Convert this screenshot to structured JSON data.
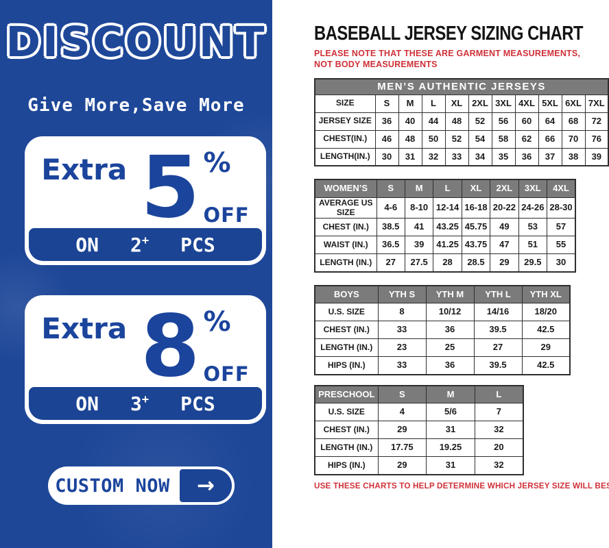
{
  "colors": {
    "panel_blue": "#1e4798",
    "deep_blue": "#1b4495",
    "header_gray": "#7b7b7b",
    "note_red": "#cf3038",
    "border_dark": "#2e2e2e"
  },
  "left": {
    "discount_title": "DISCOUNT",
    "tagline": "Give More,Save More",
    "offers": [
      {
        "prefix": "Extra",
        "percent": "5",
        "percent_sign": "%",
        "off_label": "OFF",
        "on_label": "ON",
        "qty": "2",
        "plus": "+",
        "pcs_label": "PCS"
      },
      {
        "prefix": "Extra",
        "percent": "8",
        "percent_sign": "%",
        "off_label": "OFF",
        "on_label": "ON",
        "qty": "3",
        "plus": "+",
        "pcs_label": "PCS"
      }
    ],
    "custom_button": {
      "label": "CUSTOM NOW",
      "arrow": "→"
    }
  },
  "right": {
    "title": "BASEBALL JERSEY SIZING CHART",
    "note_top": "PLEASE NOTE THAT THESE ARE GARMENT MEASUREMENTS, NOT BODY MEASUREMENTS",
    "note_bottom": "USE THESE CHARTS TO HELP DETERMINE WHICH JERSEY SIZE WILL BEST FIT YOU.",
    "tables": [
      {
        "name": "mens",
        "banner": "MEN’S AUTHENTIC JERSEYS",
        "gray_header": false,
        "rows": [
          [
            "SIZE",
            "S",
            "M",
            "L",
            "XL",
            "2XL",
            "3XL",
            "4XL",
            "5XL",
            "6XL",
            "7XL"
          ],
          [
            "JERSEY SIZE",
            "36",
            "40",
            "44",
            "48",
            "52",
            "56",
            "60",
            "64",
            "68",
            "72"
          ],
          [
            "CHEST(IN.)",
            "46",
            "48",
            "50",
            "52",
            "54",
            "58",
            "62",
            "66",
            "70",
            "76"
          ],
          [
            "LENGTH(IN.)",
            "30",
            "31",
            "32",
            "33",
            "34",
            "35",
            "36",
            "37",
            "38",
            "39"
          ]
        ]
      },
      {
        "name": "womens",
        "banner": null,
        "gray_header": true,
        "rows": [
          [
            "WOMEN’S",
            "S",
            "M",
            "L",
            "XL",
            "2XL",
            "3XL",
            "4XL"
          ],
          [
            "AVERAGE US SIZE",
            "4-6",
            "8-10",
            "12-14",
            "16-18",
            "20-22",
            "24-26",
            "28-30"
          ],
          [
            "CHEST (IN.)",
            "38.5",
            "41",
            "43.25",
            "45.75",
            "49",
            "53",
            "57"
          ],
          [
            "WAIST (IN.)",
            "36.5",
            "39",
            "41.25",
            "43.75",
            "47",
            "51",
            "55"
          ],
          [
            "LENGTH (IN.)",
            "27",
            "27.5",
            "28",
            "28.5",
            "29",
            "29.5",
            "30"
          ]
        ]
      },
      {
        "name": "boys",
        "banner": null,
        "gray_header": true,
        "rows": [
          [
            "BOYS",
            "YTH S",
            "YTH M",
            "YTH L",
            "YTH XL"
          ],
          [
            "U.S. SIZE",
            "8",
            "10/12",
            "14/16",
            "18/20"
          ],
          [
            "CHEST (IN.)",
            "33",
            "36",
            "39.5",
            "42.5"
          ],
          [
            "LENGTH (IN.)",
            "23",
            "25",
            "27",
            "29"
          ],
          [
            "HIPS (IN.)",
            "33",
            "36",
            "39.5",
            "42.5"
          ]
        ]
      },
      {
        "name": "preschool",
        "banner": null,
        "gray_header": true,
        "rows": [
          [
            "PRESCHOOL",
            "S",
            "M",
            "L"
          ],
          [
            "U.S. SIZE",
            "4",
            "5/6",
            "7"
          ],
          [
            "CHEST (IN.)",
            "29",
            "31",
            "32"
          ],
          [
            "LENGTH (IN.)",
            "17.75",
            "19.25",
            "20"
          ],
          [
            "HIPS (IN.)",
            "29",
            "31",
            "32"
          ]
        ]
      }
    ]
  }
}
